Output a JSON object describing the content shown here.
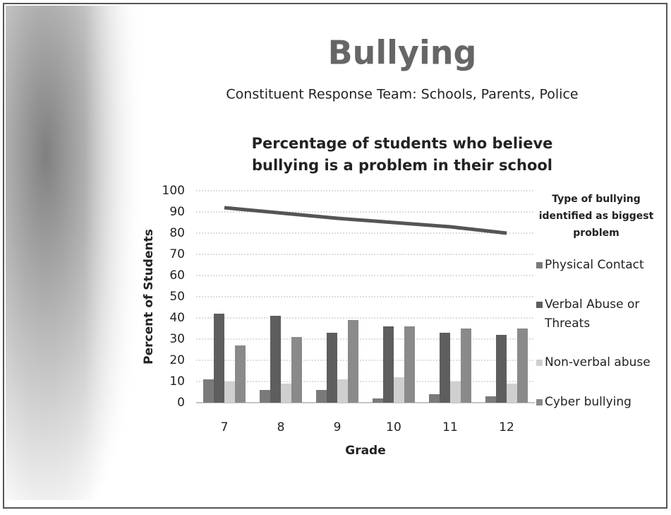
{
  "slide": {
    "title": "Bullying",
    "subtitle": "Constituent Response Team: Schools, Parents, Police"
  },
  "chart_data": {
    "type": "bar",
    "title": "Percentage of students who believe bullying is a problem in their school",
    "x_label": "Grade",
    "y_label": "Percent of Students",
    "legend_title": "Type of bullying identified as biggest problem",
    "categories": [
      "7",
      "8",
      "9",
      "10",
      "11",
      "12"
    ],
    "series": [
      {
        "name": "Physical Contact",
        "color": "#7a7a7a",
        "values": [
          11,
          6,
          6,
          2,
          4,
          3
        ]
      },
      {
        "name": "Verbal Abuse or Threats",
        "color": "#5e5e5e",
        "values": [
          42,
          41,
          33,
          36,
          33,
          32
        ]
      },
      {
        "name": "Non-verbal abuse",
        "color": "#cfcfcf",
        "values": [
          10,
          9,
          11,
          12,
          10,
          9
        ]
      },
      {
        "name": "Cyber bullying",
        "color": "#8a8a8a",
        "values": [
          27,
          31,
          39,
          36,
          35,
          35
        ]
      },
      {
        "type": "line",
        "color": "#555555",
        "values": [
          92,
          89.5,
          87,
          85,
          83,
          80
        ]
      }
    ],
    "ylim": [
      0,
      100
    ],
    "yticks": [
      0,
      10,
      20,
      30,
      40,
      50,
      60,
      70,
      80,
      90,
      100
    ],
    "grid": true,
    "legend": "right"
  }
}
